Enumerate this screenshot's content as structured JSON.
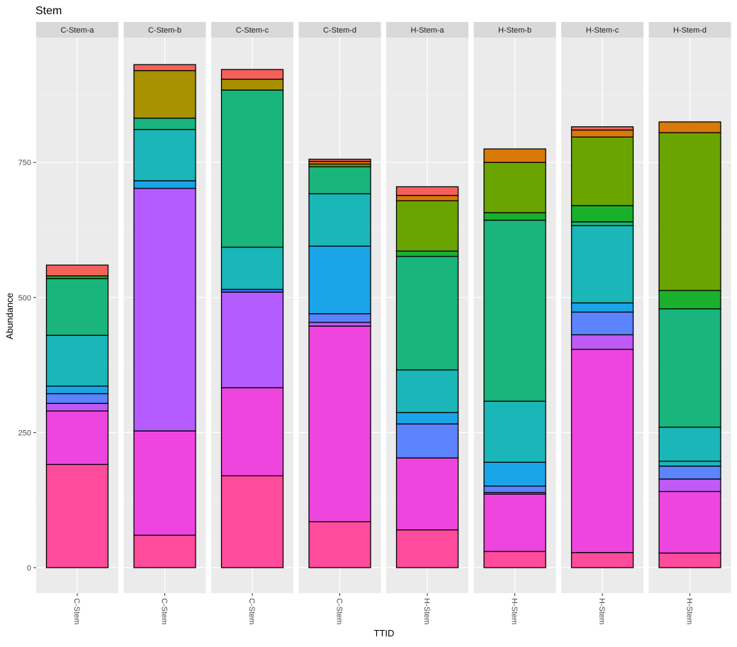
{
  "chart_data": {
    "type": "bar",
    "stacked": true,
    "faceted": true,
    "title": "Stem",
    "xlabel": "TTID",
    "ylabel": "Abundance",
    "ylim": [
      -45,
      1000
    ],
    "yticks": [
      0,
      250,
      500,
      750
    ],
    "grid": true,
    "legend": "none",
    "segment_order": "bottom-to-top",
    "facets": [
      {
        "label": "C-Stem-a",
        "category": "C-Stem",
        "segments": [
          {
            "value": 191,
            "color": "#FF4B9B"
          },
          {
            "value": 99,
            "color": "#EF45DF"
          },
          {
            "value": 14,
            "color": "#C05AF7"
          },
          {
            "value": 18,
            "color": "#5C84FE"
          },
          {
            "value": 14,
            "color": "#1AA5E8"
          },
          {
            "value": 94,
            "color": "#1AB6B8"
          },
          {
            "value": 105,
            "color": "#1AB57C"
          },
          {
            "value": 5,
            "color": "#1AB02E"
          },
          {
            "value": 20,
            "color": "#F5615A"
          }
        ]
      },
      {
        "label": "C-Stem-b",
        "category": "C-Stem",
        "segments": [
          {
            "value": 60,
            "color": "#FF4B9B"
          },
          {
            "value": 193,
            "color": "#EF45DF"
          },
          {
            "value": 449,
            "color": "#B45CFF"
          },
          {
            "value": 14,
            "color": "#1AA5E8"
          },
          {
            "value": 95,
            "color": "#1AB6B8"
          },
          {
            "value": 21,
            "color": "#1AB57C"
          },
          {
            "value": 88,
            "color": "#A79100"
          },
          {
            "value": 11,
            "color": "#F5615A"
          }
        ]
      },
      {
        "label": "C-Stem-c",
        "category": "C-Stem",
        "segments": [
          {
            "value": 170,
            "color": "#FF4B9B"
          },
          {
            "value": 163,
            "color": "#EF45DF"
          },
          {
            "value": 177,
            "color": "#B45CFF"
          },
          {
            "value": 5,
            "color": "#3F73F2"
          },
          {
            "value": 78,
            "color": "#1AB6B8"
          },
          {
            "value": 291,
            "color": "#1AB57C"
          },
          {
            "value": 20,
            "color": "#A79100"
          },
          {
            "value": 18,
            "color": "#F5615A"
          }
        ]
      },
      {
        "label": "C-Stem-d",
        "category": "C-Stem",
        "segments": [
          {
            "value": 85,
            "color": "#FF4B9B"
          },
          {
            "value": 362,
            "color": "#EF45DF"
          },
          {
            "value": 7,
            "color": "#B45CFF"
          },
          {
            "value": 16,
            "color": "#5C84FE"
          },
          {
            "value": 125,
            "color": "#1AA5E8"
          },
          {
            "value": 97,
            "color": "#1AB6B8"
          },
          {
            "value": 50,
            "color": "#1AB57C"
          },
          {
            "value": 5,
            "color": "#6AA400"
          },
          {
            "value": 5,
            "color": "#D9790A"
          },
          {
            "value": 4,
            "color": "#F5615A"
          }
        ]
      },
      {
        "label": "H-Stem-a",
        "category": "H-Stem",
        "segments": [
          {
            "value": 70,
            "color": "#FF4B9B"
          },
          {
            "value": 133,
            "color": "#EF45DF"
          },
          {
            "value": 63,
            "color": "#5C84FE"
          },
          {
            "value": 21,
            "color": "#1AA5E8"
          },
          {
            "value": 79,
            "color": "#1AB6B8"
          },
          {
            "value": 210,
            "color": "#1AB57C"
          },
          {
            "value": 10,
            "color": "#1AB02E"
          },
          {
            "value": 93,
            "color": "#6AA400"
          },
          {
            "value": 10,
            "color": "#D9790A"
          },
          {
            "value": 16,
            "color": "#F5615A"
          }
        ]
      },
      {
        "label": "H-Stem-b",
        "category": "H-Stem",
        "segments": [
          {
            "value": 30,
            "color": "#FF4B9B"
          },
          {
            "value": 106,
            "color": "#EF45DF"
          },
          {
            "value": 3,
            "color": "#B45CFF"
          },
          {
            "value": 12,
            "color": "#5C84FE"
          },
          {
            "value": 44,
            "color": "#1AA5E8"
          },
          {
            "value": 113,
            "color": "#1AB6B8"
          },
          {
            "value": 335,
            "color": "#1AB57C"
          },
          {
            "value": 14,
            "color": "#1AB02E"
          },
          {
            "value": 93,
            "color": "#6AA400"
          },
          {
            "value": 25,
            "color": "#D9790A"
          }
        ]
      },
      {
        "label": "H-Stem-c",
        "category": "H-Stem",
        "segments": [
          {
            "value": 28,
            "color": "#FF4B9B"
          },
          {
            "value": 376,
            "color": "#EF45DF"
          },
          {
            "value": 27,
            "color": "#C05AF7"
          },
          {
            "value": 42,
            "color": "#5C84FE"
          },
          {
            "value": 17,
            "color": "#1AA5E8"
          },
          {
            "value": 143,
            "color": "#1AB6B8"
          },
          {
            "value": 7,
            "color": "#1AB57C"
          },
          {
            "value": 30,
            "color": "#1AB02E"
          },
          {
            "value": 127,
            "color": "#6AA400"
          },
          {
            "value": 13,
            "color": "#D9790A"
          },
          {
            "value": 6,
            "color": "#F5615A"
          }
        ]
      },
      {
        "label": "H-Stem-d",
        "category": "H-Stem",
        "segments": [
          {
            "value": 27,
            "color": "#FF4B9B"
          },
          {
            "value": 114,
            "color": "#EF45DF"
          },
          {
            "value": 23,
            "color": "#C05AF7"
          },
          {
            "value": 24,
            "color": "#5C84FE"
          },
          {
            "value": 9,
            "color": "#1AB6B8"
          },
          {
            "value": 63,
            "color": "#1AB6B8"
          },
          {
            "value": 219,
            "color": "#1AB57C"
          },
          {
            "value": 34,
            "color": "#1AB02E"
          },
          {
            "value": 292,
            "color": "#6AA400"
          },
          {
            "value": 20,
            "color": "#D9790A"
          }
        ]
      }
    ]
  }
}
